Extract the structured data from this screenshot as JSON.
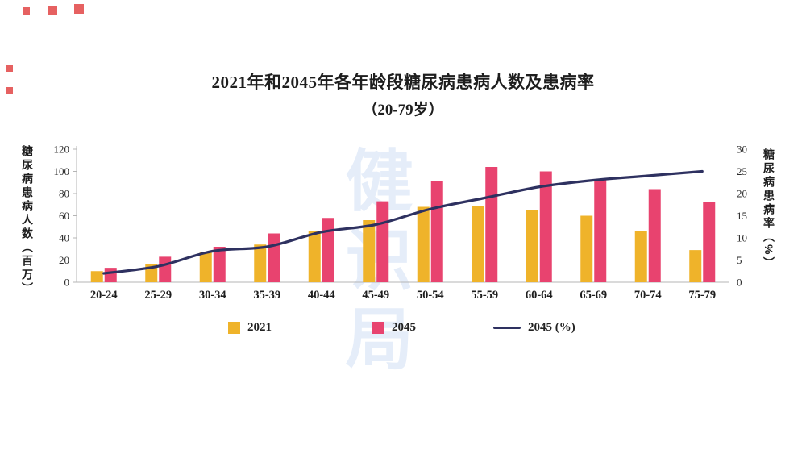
{
  "title": {
    "line1": "2021年和2045年各年龄段糖尿病患病人数及患病率",
    "line2": "（20-79岁）"
  },
  "watermark": "健识局",
  "legend": [
    {
      "label": "2021",
      "color": "#EFB32A",
      "type": "square"
    },
    {
      "label": "2045",
      "color": "#E8436F",
      "type": "square"
    },
    {
      "label": "2045 (%)",
      "color": "#2E3160",
      "type": "line"
    }
  ],
  "chart_data": {
    "type": "bar",
    "title": "2021年和2045年各年龄段糖尿病患病人数及患病率（20-79岁）",
    "categories": [
      "20-24",
      "25-29",
      "30-34",
      "35-39",
      "40-44",
      "45-49",
      "50-54",
      "55-59",
      "60-64",
      "65-69",
      "70-74",
      "75-79"
    ],
    "series": [
      {
        "name": "2021",
        "type": "bar",
        "axis": "left",
        "color": "#EFB32A",
        "values": [
          10,
          16,
          27,
          34,
          46,
          56,
          68,
          69,
          65,
          60,
          46,
          29
        ]
      },
      {
        "name": "2045",
        "type": "bar",
        "axis": "left",
        "color": "#E8436F",
        "values": [
          13,
          23,
          32,
          44,
          58,
          73,
          91,
          104,
          100,
          93,
          84,
          72
        ]
      },
      {
        "name": "2045 (%)",
        "type": "line",
        "axis": "right",
        "color": "#2E3160",
        "values": [
          2,
          3.6,
          7,
          8,
          11.3,
          13,
          16.5,
          19,
          21.5,
          23,
          24,
          25
        ]
      }
    ],
    "left_axis": {
      "label": "糖尿病患病人数（百万）",
      "min": 0,
      "max": 120,
      "step": 20
    },
    "right_axis": {
      "label": "糖尿病患病率（%）",
      "min": 0,
      "max": 30,
      "step": 5
    },
    "grid": false,
    "legend_position": "bottom",
    "axis_color": "#b5b5b5",
    "tick_text_color": "#2b2b2b"
  }
}
